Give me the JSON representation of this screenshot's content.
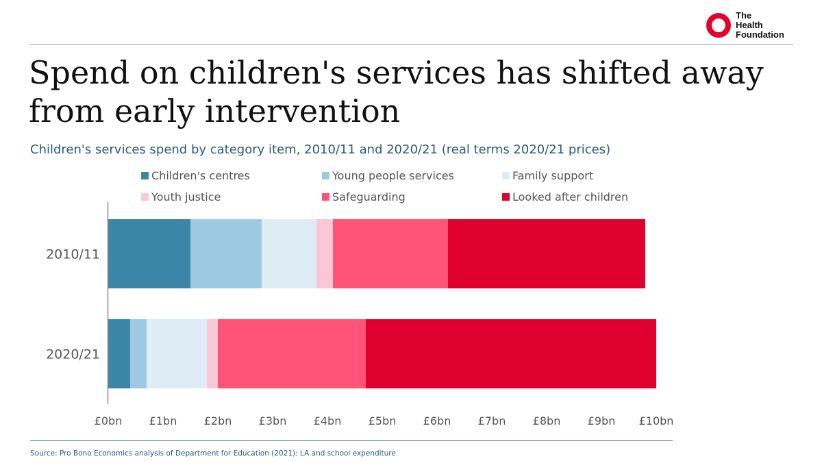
{
  "branding": {
    "logo_lines": [
      "The",
      "Health",
      "Foundation"
    ],
    "logo_color": "#e4002b"
  },
  "header": {
    "title": "Spend on children's services has shifted away from early intervention",
    "subtitle": "Children's services spend by category item, 2010/11 and 2020/21 (real terms 2020/21 prices)"
  },
  "footer": {
    "source": "Source: Pro Bono Economics analysis of Department for Education (2021): LA and school expenditure"
  },
  "chart_data": {
    "type": "bar",
    "orientation": "horizontal",
    "stacked": true,
    "categories": [
      "2010/11",
      "2020/21"
    ],
    "series": [
      {
        "name": "Children's centres",
        "color": "#3a85a8",
        "values": [
          1.5,
          0.4
        ]
      },
      {
        "name": "Young people services",
        "color": "#9ecae1",
        "values": [
          1.3,
          0.3
        ]
      },
      {
        "name": "Family support",
        "color": "#deedf5",
        "values": [
          1.0,
          1.1
        ]
      },
      {
        "name": "Youth justice",
        "color": "#fbc7d4",
        "values": [
          0.3,
          0.2
        ]
      },
      {
        "name": "Safeguarding",
        "color": "#ff5478",
        "values": [
          2.1,
          2.7
        ]
      },
      {
        "name": "Looked after children",
        "color": "#df0030",
        "values": [
          3.6,
          5.3
        ]
      }
    ],
    "xlim": [
      0,
      10
    ],
    "xticks": [
      0,
      1,
      2,
      3,
      4,
      5,
      6,
      7,
      8,
      9,
      10
    ],
    "xtick_labels": [
      "£0bn",
      "£1bn",
      "£2bn",
      "£3bn",
      "£4bn",
      "£5bn",
      "£6bn",
      "£7bn",
      "£8bn",
      "£9bn",
      "£10bn"
    ],
    "grid": false,
    "legend_position": "top"
  }
}
